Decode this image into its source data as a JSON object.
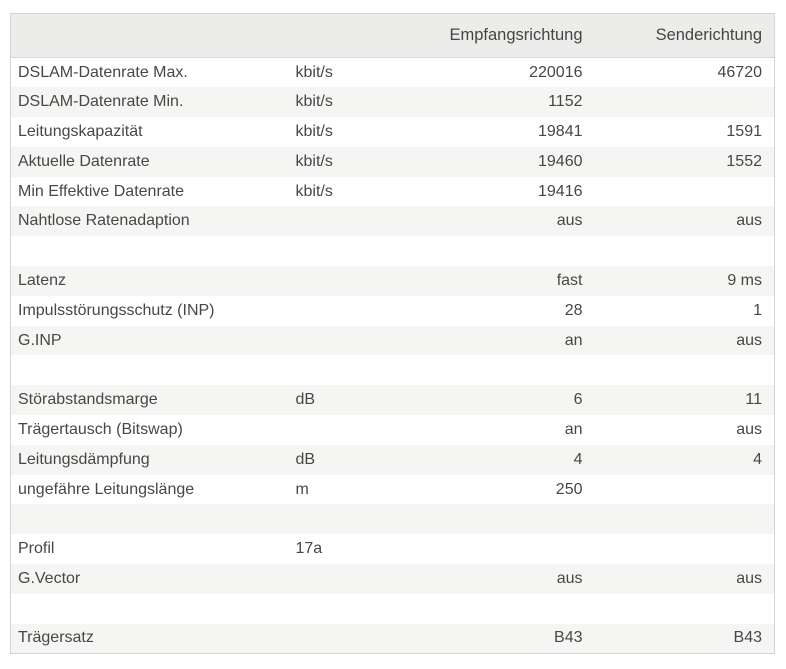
{
  "table": {
    "columns": {
      "label": "",
      "unit": "",
      "rx": "Empfangsrichtung",
      "tx": "Senderichtung"
    },
    "rows": [
      {
        "label": "DSLAM-Datenrate Max.",
        "unit": "kbit/s",
        "rx": "220016",
        "tx": "46720"
      },
      {
        "label": "DSLAM-Datenrate Min.",
        "unit": "kbit/s",
        "rx": "1152",
        "tx": ""
      },
      {
        "label": "Leitungskapazität",
        "unit": "kbit/s",
        "rx": "19841",
        "tx": "1591"
      },
      {
        "label": "Aktuelle Datenrate",
        "unit": "kbit/s",
        "rx": "19460",
        "tx": "1552"
      },
      {
        "label": "Min Effektive Datenrate",
        "unit": "kbit/s",
        "rx": "19416",
        "tx": ""
      },
      {
        "label": "Nahtlose Ratenadaption",
        "unit": "",
        "rx": "aus",
        "tx": "aus"
      },
      {
        "label": "",
        "unit": "",
        "rx": "",
        "tx": ""
      },
      {
        "label": "Latenz",
        "unit": "",
        "rx": "fast",
        "tx": "9 ms"
      },
      {
        "label": "Impulsstörungsschutz (INP)",
        "unit": "",
        "rx": "28",
        "tx": "1"
      },
      {
        "label": "G.INP",
        "unit": "",
        "rx": "an",
        "tx": "aus"
      },
      {
        "label": "",
        "unit": "",
        "rx": "",
        "tx": ""
      },
      {
        "label": "Störabstandsmarge",
        "unit": "dB",
        "rx": "6",
        "tx": "11"
      },
      {
        "label": "Trägertausch (Bitswap)",
        "unit": "",
        "rx": "an",
        "tx": "aus"
      },
      {
        "label": "Leitungsdämpfung",
        "unit": "dB",
        "rx": "4",
        "tx": "4"
      },
      {
        "label": "ungefähre Leitungslänge",
        "unit": "m",
        "rx": "250",
        "tx": ""
      },
      {
        "label": "",
        "unit": "",
        "rx": "",
        "tx": ""
      },
      {
        "label": "Profil",
        "unit": "17a",
        "rx": "",
        "tx": ""
      },
      {
        "label": "G.Vector",
        "unit": "",
        "rx": "aus",
        "tx": "aus"
      },
      {
        "label": "",
        "unit": "",
        "rx": "",
        "tx": ""
      },
      {
        "label": "Trägersatz",
        "unit": "",
        "rx": "B43",
        "tx": "B43"
      }
    ]
  }
}
